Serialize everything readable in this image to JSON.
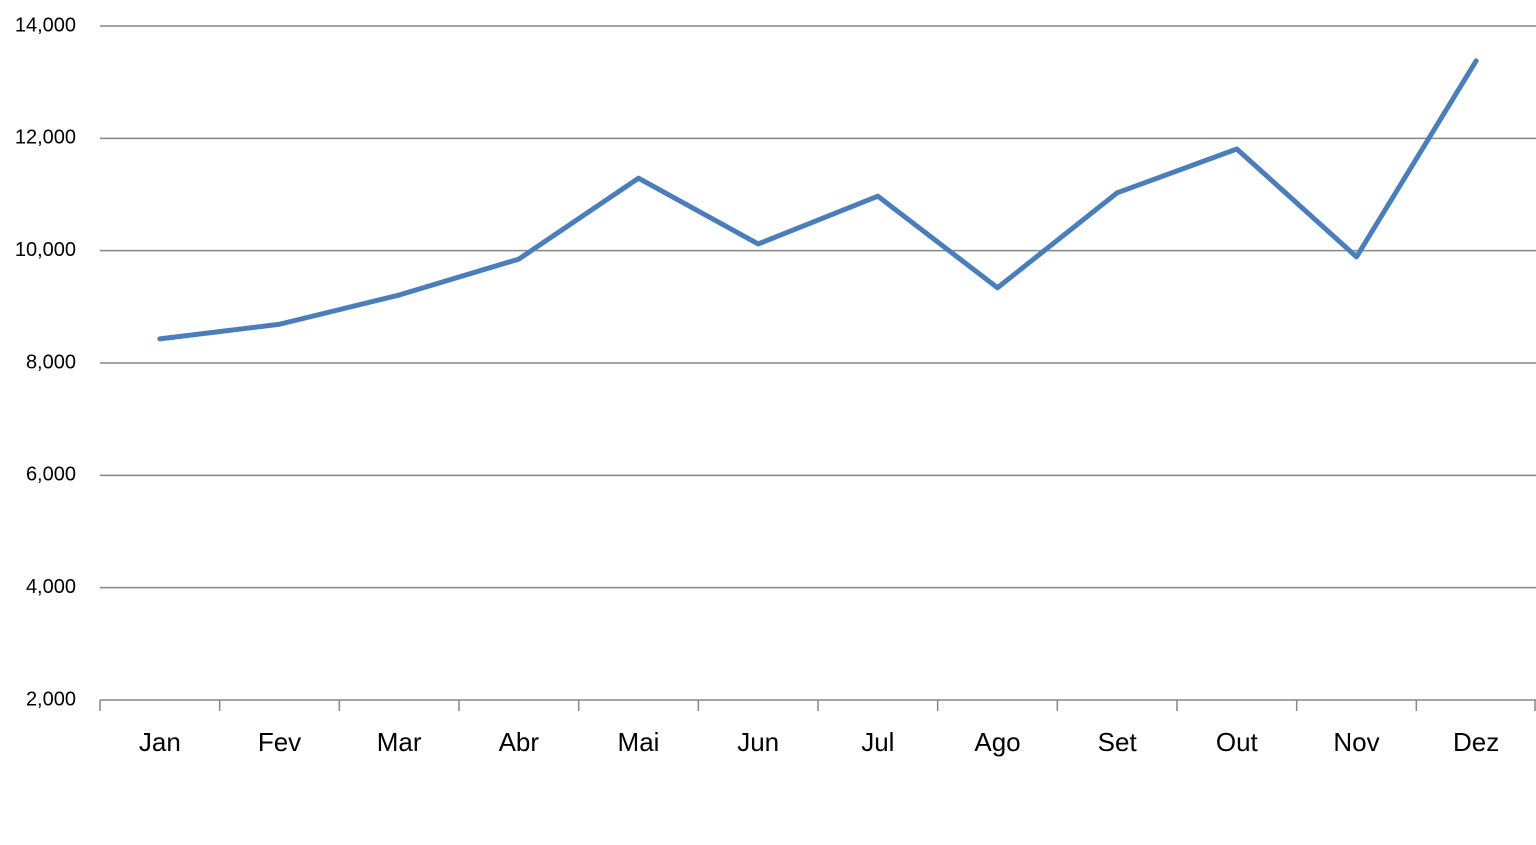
{
  "chart_data": {
    "type": "line",
    "categories": [
      "Jan",
      "Fev",
      "Mar",
      "Abr",
      "Mai",
      "Jun",
      "Jul",
      "Ago",
      "Set",
      "Out",
      "Nov",
      "Dez"
    ],
    "series": [
      {
        "color": "#4a7ebb",
        "values": [
          8430,
          8690,
          9210,
          9850,
          11290,
          10120,
          10970,
          9340,
          11030,
          11810,
          9890,
          13380
        ]
      }
    ],
    "ylim": [
      2000,
      14000
    ],
    "yticks": [
      {
        "value": 2000,
        "label": "2,000"
      },
      {
        "value": 4000,
        "label": "4,000"
      },
      {
        "value": 6000,
        "label": "6,000"
      },
      {
        "value": 8000,
        "label": "8,000"
      },
      {
        "value": 10000,
        "label": "10,000"
      },
      {
        "value": 12000,
        "label": "12,000"
      },
      {
        "value": 14000,
        "label": "14,000"
      }
    ],
    "grid": true
  }
}
